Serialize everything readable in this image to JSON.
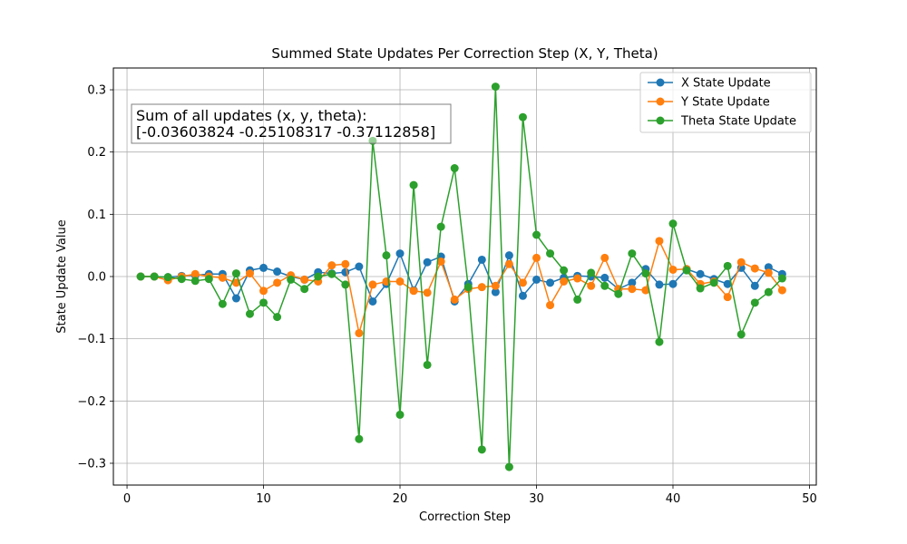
{
  "chart_data": {
    "type": "line",
    "title": "Summed State Updates Per Correction Step (X, Y, Theta)",
    "xlabel": "Correction Step",
    "ylabel": "State Update Value",
    "xlim": [
      -1,
      50.5
    ],
    "ylim": [
      -0.335,
      0.335
    ],
    "xticks": [
      0,
      10,
      20,
      30,
      40,
      50
    ],
    "xtick_labels": [
      "0",
      "10",
      "20",
      "30",
      "40",
      "50"
    ],
    "yticks": [
      -0.3,
      -0.2,
      -0.1,
      0.0,
      0.1,
      0.2,
      0.3
    ],
    "ytick_labels": [
      "−0.3",
      "−0.2",
      "−0.1",
      "0.0",
      "0.1",
      "0.2",
      "0.3"
    ],
    "grid": true,
    "legend_position": "top-right",
    "x": [
      1,
      2,
      3,
      4,
      5,
      6,
      7,
      8,
      9,
      10,
      11,
      12,
      13,
      14,
      15,
      16,
      17,
      18,
      19,
      20,
      21,
      22,
      23,
      24,
      25,
      26,
      27,
      28,
      29,
      30,
      31,
      32,
      33,
      34,
      35,
      36,
      37,
      38,
      39,
      40,
      41,
      42,
      43,
      44,
      45,
      46,
      47,
      48
    ],
    "series": [
      {
        "name": "X State Update",
        "color": "#1f77b4",
        "values": [
          0.0,
          0.0,
          -0.001,
          0.001,
          0.002,
          0.004,
          0.004,
          -0.035,
          0.01,
          0.014,
          0.008,
          0.0,
          -0.005,
          0.007,
          0.005,
          0.007,
          0.016,
          -0.04,
          -0.012,
          0.037,
          -0.022,
          0.023,
          0.032,
          -0.04,
          -0.012,
          0.027,
          -0.025,
          0.034,
          -0.031,
          -0.005,
          -0.01,
          -0.002,
          0.001,
          0.0,
          -0.002,
          -0.02,
          -0.01,
          0.012,
          -0.013,
          -0.012,
          0.012,
          0.004,
          -0.004,
          -0.012,
          0.014,
          -0.015,
          0.015,
          0.004
        ]
      },
      {
        "name": "Y State Update",
        "color": "#ff7f0e",
        "values": [
          0.0,
          0.0,
          -0.006,
          0.0,
          0.004,
          0.0,
          -0.002,
          -0.01,
          0.005,
          -0.023,
          -0.01,
          0.002,
          -0.005,
          -0.008,
          0.018,
          0.02,
          -0.091,
          -0.013,
          -0.008,
          -0.008,
          -0.023,
          -0.026,
          0.024,
          -0.037,
          -0.02,
          -0.017,
          -0.015,
          0.02,
          -0.01,
          0.03,
          -0.046,
          -0.008,
          -0.003,
          -0.015,
          0.03,
          -0.02,
          -0.02,
          -0.022,
          0.057,
          0.011,
          0.012,
          -0.012,
          -0.008,
          -0.033,
          0.023,
          0.013,
          0.006,
          -0.022
        ]
      },
      {
        "name": "Theta State Update",
        "color": "#2ca02c",
        "values": [
          0.0,
          0.0,
          -0.001,
          -0.004,
          -0.007,
          -0.004,
          -0.044,
          0.005,
          -0.06,
          -0.042,
          -0.065,
          -0.005,
          -0.02,
          0.0,
          0.004,
          -0.013,
          -0.261,
          0.218,
          0.034,
          -0.222,
          0.147,
          -0.142,
          0.08,
          0.174,
          -0.017,
          -0.278,
          0.305,
          -0.306,
          0.256,
          0.067,
          0.037,
          0.01,
          -0.037,
          0.006,
          -0.015,
          -0.028,
          0.037,
          0.005,
          -0.105,
          0.085,
          0.01,
          -0.019,
          -0.01,
          0.017,
          -0.093,
          -0.042,
          -0.025,
          -0.003
        ]
      }
    ],
    "annotation": {
      "line1": "Sum of all updates (x, y, theta):",
      "line2": "[-0.03603824 -0.25108317 -0.37112858]",
      "position": "top-left"
    }
  }
}
